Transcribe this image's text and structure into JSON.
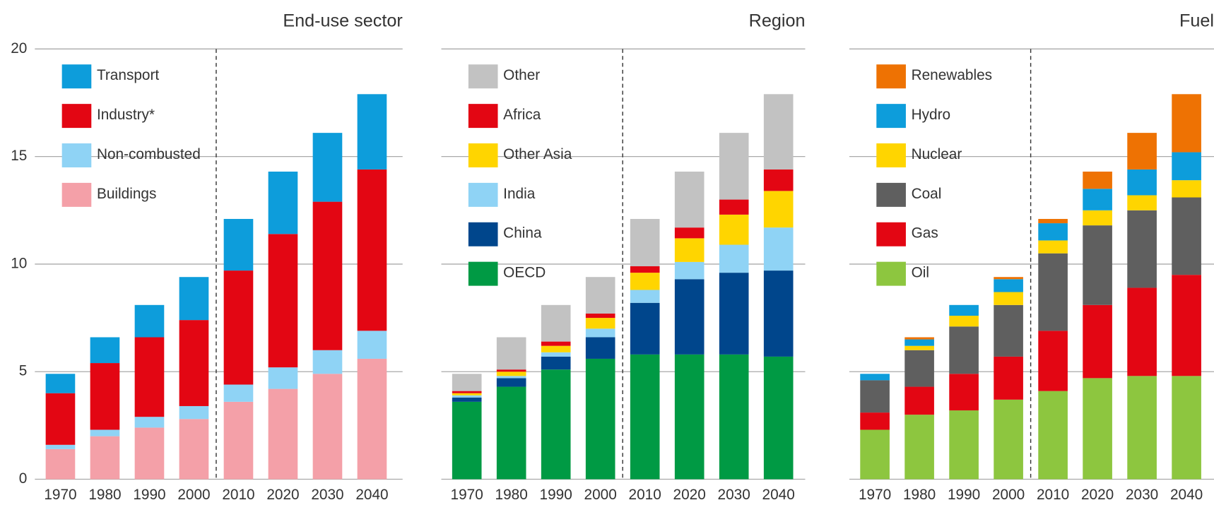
{
  "chart_data": [
    {
      "type": "bar",
      "stacked": true,
      "title": "End-use sector",
      "categories": [
        "1970",
        "1980",
        "1990",
        "2000",
        "2010",
        "2020",
        "2030",
        "2040"
      ],
      "ylim": [
        0,
        20
      ],
      "yticks": [
        0,
        5,
        10,
        15,
        20
      ],
      "grid": true,
      "legend": "upper left",
      "series": [
        {
          "name": "Buildings",
          "color": "#f4a0a8",
          "values": [
            1.4,
            2.0,
            2.4,
            2.8,
            3.6,
            4.2,
            4.9,
            5.6
          ]
        },
        {
          "name": "Non-combusted",
          "color": "#8fd3f5",
          "values": [
            0.2,
            0.3,
            0.5,
            0.6,
            0.8,
            1.0,
            1.1,
            1.3
          ]
        },
        {
          "name": "Industry*",
          "color": "#e30613",
          "values": [
            2.4,
            3.1,
            3.7,
            4.0,
            5.3,
            6.2,
            6.9,
            7.5
          ]
        },
        {
          "name": "Transport",
          "color": "#0d9ddb",
          "values": [
            0.9,
            1.2,
            1.5,
            2.0,
            2.4,
            2.9,
            3.2,
            3.5
          ]
        }
      ]
    },
    {
      "type": "bar",
      "stacked": true,
      "title": "Region",
      "categories": [
        "1970",
        "1980",
        "1990",
        "2000",
        "2010",
        "2020",
        "2030",
        "2040"
      ],
      "ylim": [
        0,
        20
      ],
      "yticks": [
        0,
        5,
        10,
        15,
        20
      ],
      "grid": true,
      "legend": "upper left",
      "series": [
        {
          "name": "OECD",
          "color": "#009a44",
          "values": [
            3.6,
            4.3,
            5.1,
            5.6,
            5.8,
            5.8,
            5.8,
            5.7
          ]
        },
        {
          "name": "China",
          "color": "#00468c",
          "values": [
            0.2,
            0.4,
            0.6,
            1.0,
            2.4,
            3.5,
            3.8,
            4.0
          ]
        },
        {
          "name": "India",
          "color": "#8fd3f5",
          "values": [
            0.1,
            0.1,
            0.2,
            0.4,
            0.6,
            0.8,
            1.3,
            2.0
          ]
        },
        {
          "name": "Other Asia",
          "color": "#ffd500",
          "values": [
            0.1,
            0.2,
            0.3,
            0.5,
            0.8,
            1.1,
            1.4,
            1.7
          ]
        },
        {
          "name": "Africa",
          "color": "#e30613",
          "values": [
            0.1,
            0.1,
            0.2,
            0.2,
            0.3,
            0.5,
            0.7,
            1.0
          ]
        },
        {
          "name": "Other",
          "color": "#c2c2c2",
          "values": [
            0.8,
            1.5,
            1.7,
            1.7,
            2.2,
            2.6,
            3.1,
            3.5
          ]
        }
      ]
    },
    {
      "type": "bar",
      "stacked": true,
      "title": "Fuel",
      "categories": [
        "1970",
        "1980",
        "1990",
        "2000",
        "2010",
        "2020",
        "2030",
        "2040"
      ],
      "ylim": [
        0,
        20
      ],
      "yticks": [
        0,
        5,
        10,
        15,
        20
      ],
      "grid": true,
      "legend": "upper left",
      "series": [
        {
          "name": "Oil",
          "color": "#8dc63f",
          "values": [
            2.3,
            3.0,
            3.2,
            3.7,
            4.1,
            4.7,
            4.8,
            4.8
          ]
        },
        {
          "name": "Gas",
          "color": "#e30613",
          "values": [
            0.8,
            1.3,
            1.7,
            2.0,
            2.8,
            3.4,
            4.1,
            4.7
          ]
        },
        {
          "name": "Coal",
          "color": "#5f5f5f",
          "values": [
            1.5,
            1.7,
            2.2,
            2.4,
            3.6,
            3.7,
            3.6,
            3.6
          ]
        },
        {
          "name": "Nuclear",
          "color": "#ffd500",
          "values": [
            0.0,
            0.2,
            0.5,
            0.6,
            0.6,
            0.7,
            0.7,
            0.8
          ]
        },
        {
          "name": "Hydro",
          "color": "#0d9ddb",
          "values": [
            0.3,
            0.3,
            0.5,
            0.6,
            0.8,
            1.0,
            1.2,
            1.3
          ]
        },
        {
          "name": "Renewables",
          "color": "#ee7203",
          "values": [
            0.0,
            0.1,
            0.0,
            0.1,
            0.2,
            0.8,
            1.7,
            2.7
          ]
        }
      ]
    }
  ]
}
